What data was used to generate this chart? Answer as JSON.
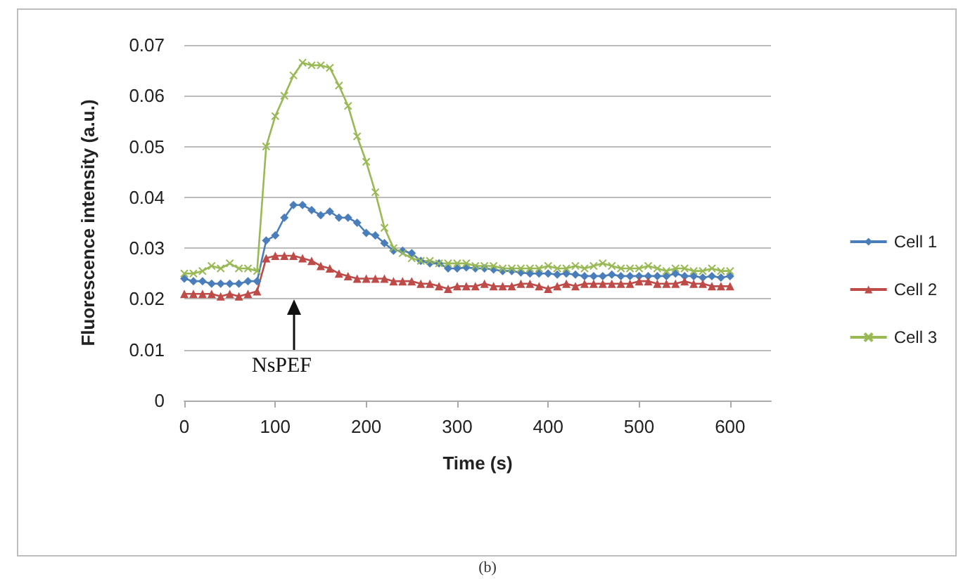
{
  "chart_data": {
    "type": "line",
    "ylabel": "Fluorescence intensity (a.u.)",
    "xlabel": "Time (s)",
    "x": [
      0,
      10,
      20,
      30,
      40,
      50,
      60,
      70,
      80,
      90,
      100,
      110,
      120,
      130,
      140,
      150,
      160,
      170,
      180,
      190,
      200,
      210,
      220,
      230,
      240,
      250,
      260,
      270,
      280,
      290,
      300,
      310,
      320,
      330,
      340,
      350,
      360,
      370,
      380,
      390,
      400,
      410,
      420,
      430,
      440,
      450,
      460,
      470,
      480,
      490,
      500,
      510,
      520,
      530,
      540,
      550,
      560,
      570,
      580,
      590,
      600
    ],
    "series": [
      {
        "name": "Cell 1",
        "color": "#4a7ebb",
        "marker": "diamond",
        "values": [
          0.024,
          0.0235,
          0.0235,
          0.023,
          0.023,
          0.023,
          0.023,
          0.0235,
          0.0235,
          0.0315,
          0.0325,
          0.036,
          0.0385,
          0.0385,
          0.0375,
          0.0365,
          0.0372,
          0.036,
          0.036,
          0.035,
          0.033,
          0.0325,
          0.031,
          0.0295,
          0.0295,
          0.029,
          0.0275,
          0.027,
          0.027,
          0.026,
          0.026,
          0.0262,
          0.026,
          0.026,
          0.0258,
          0.0255,
          0.0255,
          0.0252,
          0.025,
          0.025,
          0.025,
          0.0248,
          0.025,
          0.0248,
          0.0245,
          0.0245,
          0.0245,
          0.0248,
          0.0245,
          0.0245,
          0.0245,
          0.0245,
          0.0245,
          0.0245,
          0.025,
          0.0245,
          0.0245,
          0.0242,
          0.0245,
          0.0242,
          0.0245
        ]
      },
      {
        "name": "Cell 2",
        "color": "#be4b48",
        "marker": "triangle",
        "values": [
          0.021,
          0.021,
          0.021,
          0.021,
          0.0205,
          0.021,
          0.0205,
          0.021,
          0.0215,
          0.028,
          0.0285,
          0.0285,
          0.0285,
          0.028,
          0.0275,
          0.0265,
          0.026,
          0.025,
          0.0245,
          0.024,
          0.024,
          0.024,
          0.024,
          0.0235,
          0.0235,
          0.0235,
          0.023,
          0.023,
          0.0225,
          0.022,
          0.0225,
          0.0225,
          0.0225,
          0.023,
          0.0225,
          0.0225,
          0.0225,
          0.023,
          0.023,
          0.0225,
          0.022,
          0.0225,
          0.023,
          0.0225,
          0.023,
          0.023,
          0.023,
          0.023,
          0.023,
          0.023,
          0.0235,
          0.0235,
          0.023,
          0.023,
          0.023,
          0.0235,
          0.023,
          0.023,
          0.0225,
          0.0225,
          0.0225
        ]
      },
      {
        "name": "Cell 3",
        "color": "#98b954",
        "marker": "cross",
        "values": [
          0.025,
          0.025,
          0.0255,
          0.0265,
          0.026,
          0.027,
          0.026,
          0.026,
          0.0255,
          0.05,
          0.056,
          0.06,
          0.064,
          0.0665,
          0.066,
          0.066,
          0.0655,
          0.062,
          0.058,
          0.052,
          0.047,
          0.041,
          0.034,
          0.03,
          0.029,
          0.028,
          0.0275,
          0.0275,
          0.027,
          0.027,
          0.027,
          0.027,
          0.0265,
          0.0265,
          0.0265,
          0.026,
          0.026,
          0.026,
          0.026,
          0.026,
          0.0265,
          0.026,
          0.026,
          0.0265,
          0.026,
          0.0265,
          0.027,
          0.0265,
          0.026,
          0.026,
          0.026,
          0.0265,
          0.026,
          0.0255,
          0.026,
          0.026,
          0.0255,
          0.0255,
          0.026,
          0.0255,
          0.0255
        ]
      }
    ],
    "xlim": [
      0,
      645
    ],
    "xticks": [
      0,
      100,
      200,
      300,
      400,
      500,
      600
    ],
    "ylim": [
      0,
      0.07
    ],
    "yticks": [
      0,
      0.01,
      0.02,
      0.03,
      0.04,
      0.05,
      0.06,
      0.07
    ],
    "grid": "y",
    "legend": "right",
    "line_style": "solid",
    "annotations": [
      "NsPEF",
      "(b)"
    ]
  }
}
